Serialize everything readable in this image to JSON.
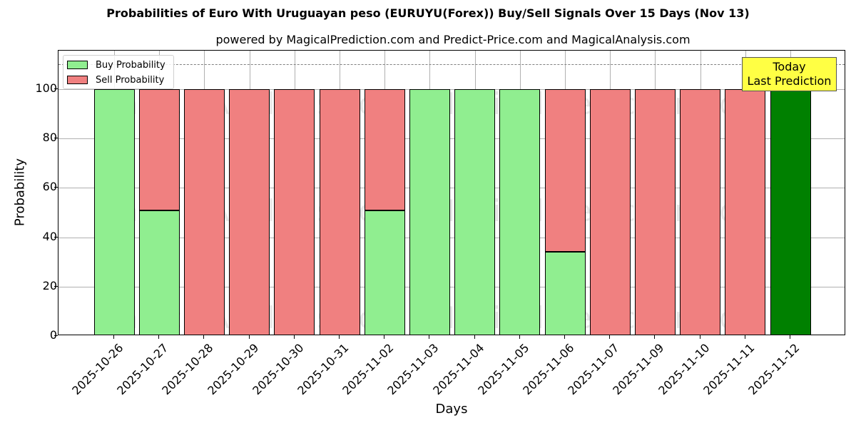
{
  "header": {
    "title": "Probabilities of Euro With Uruguayan peso (EURUYU(Forex)) Buy/Sell Signals Over 15 Days (Nov 13)",
    "subtitle": "powered by MagicalPrediction.com and Predict-Price.com and MagicalAnalysis.com"
  },
  "legend": {
    "buy_label": "Buy Probability",
    "sell_label": "Sell Probability"
  },
  "annotation": {
    "line1": "Today",
    "line2": "Last Prediction"
  },
  "watermarks": [
    "MagicalAnalysis.com",
    "MagicalPrediction.com"
  ],
  "colors": {
    "buy": "#90ee90",
    "sell": "#f08080",
    "today": "#008000",
    "annotation_bg": "#ffff44",
    "threshold_line": "#808080"
  },
  "chart_data": {
    "type": "bar",
    "stacked": true,
    "title": "Probabilities of Euro With Uruguayan peso (EURUYU(Forex)) Buy/Sell Signals Over 15 Days (Nov 13)",
    "subtitle": "powered by MagicalPrediction.com and Predict-Price.com and MagicalAnalysis.com",
    "xlabel": "Days",
    "ylabel": "Probability",
    "ylim": [
      0,
      115.6
    ],
    "yticks": [
      0,
      20,
      40,
      60,
      80,
      100
    ],
    "grid": true,
    "legend_position": "upper left",
    "threshold_line": 110,
    "categories": [
      "2025-10-26",
      "2025-10-27",
      "2025-10-28",
      "2025-10-29",
      "2025-10-30",
      "2025-10-31",
      "2025-11-02",
      "2025-11-03",
      "2025-11-04",
      "2025-11-05",
      "2025-11-06",
      "2025-11-07",
      "2025-11-09",
      "2025-11-10",
      "2025-11-11",
      "2025-11-12"
    ],
    "series": [
      {
        "name": "Buy Probability",
        "values": [
          100,
          51,
          0,
          0,
          0,
          0,
          51,
          100,
          100,
          100,
          34,
          0,
          0,
          0,
          0,
          100
        ]
      },
      {
        "name": "Sell Probability",
        "values": [
          0,
          49,
          100,
          100,
          100,
          100,
          49,
          0,
          0,
          0,
          66,
          100,
          100,
          100,
          100,
          0
        ]
      }
    ],
    "annotations": [
      {
        "text": "Today\nLast Prediction",
        "x": "2025-11-12"
      }
    ],
    "highlight": {
      "category": "2025-11-12",
      "color": "#008000"
    }
  }
}
